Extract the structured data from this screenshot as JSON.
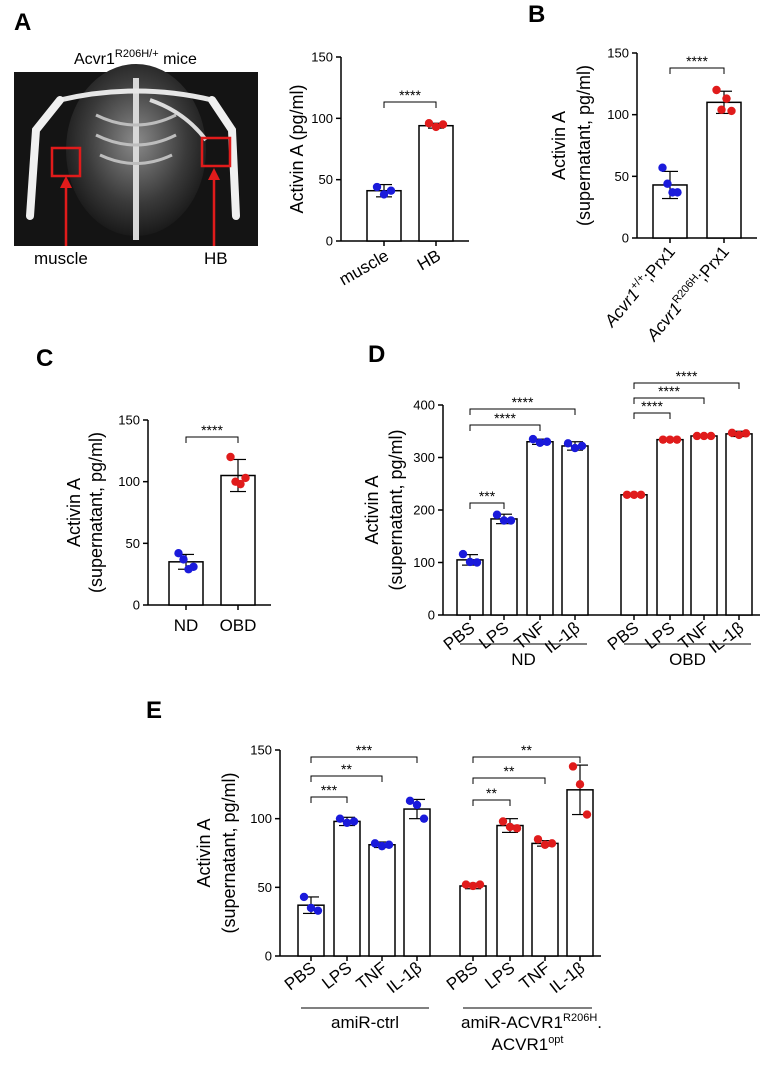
{
  "panels": {
    "A": {
      "label": "A",
      "image": {
        "title": "Acvr1",
        "title_sup": "R206H/+",
        "title_suffix": " mice",
        "muscle_label": "muscle",
        "hb_label": "HB"
      },
      "chart": {
        "type": "bar",
        "ylabel": "Activin A (pg/ml)",
        "ylim": [
          0,
          150
        ],
        "yticks": [
          0,
          50,
          100,
          150
        ],
        "categories": [
          "muscle",
          "HB"
        ],
        "values": [
          41,
          94
        ],
        "errors": [
          5,
          2
        ],
        "points": [
          [
            44,
            38,
            41
          ],
          [
            96,
            93,
            95
          ]
        ],
        "point_colors": [
          "#1a1adb",
          "#e01b1b"
        ],
        "significance": [
          {
            "from": 0,
            "to": 1,
            "label": "****"
          }
        ]
      }
    },
    "B": {
      "label": "B",
      "chart": {
        "type": "bar",
        "ylabel_line1": "Activin A",
        "ylabel_line2": "(supernatant, pg/ml)",
        "ylim": [
          0,
          150
        ],
        "yticks": [
          0,
          50,
          100,
          150
        ],
        "categories": [
          {
            "main": "Acvr1",
            "sup": "+/+",
            "suffix": ";Prx1"
          },
          {
            "main": "Acvr1",
            "sup": "R206H",
            "suffix": ";Prx1"
          }
        ],
        "values": [
          43,
          110
        ],
        "errors": [
          11,
          9
        ],
        "points": [
          [
            57,
            44,
            37,
            37
          ],
          [
            120,
            104,
            113,
            103
          ]
        ],
        "point_colors": [
          "#1a1adb",
          "#e01b1b"
        ],
        "significance": [
          {
            "from": 0,
            "to": 1,
            "label": "****"
          }
        ]
      }
    },
    "C": {
      "label": "C",
      "chart": {
        "type": "bar",
        "ylabel_line1": "Activin A",
        "ylabel_line2": "(supernatant, pg/ml)",
        "ylim": [
          0,
          150
        ],
        "yticks": [
          0,
          50,
          100,
          150
        ],
        "categories": [
          "ND",
          "OBD"
        ],
        "values": [
          35,
          105
        ],
        "errors": [
          6,
          13
        ],
        "points": [
          [
            42,
            37,
            29,
            31
          ],
          [
            120,
            100,
            98,
            103
          ]
        ],
        "point_colors": [
          "#1a1adb",
          "#e01b1b"
        ],
        "significance": [
          {
            "from": 0,
            "to": 1,
            "label": "****"
          }
        ]
      }
    },
    "D": {
      "label": "D",
      "chart": {
        "type": "bar",
        "ylabel_line1": "Activin A",
        "ylabel_line2": "(supernatant, pg/ml)",
        "ylim": [
          0,
          400
        ],
        "yticks": [
          0,
          100,
          200,
          300,
          400
        ],
        "groups": [
          {
            "name": "ND",
            "color": "#2a2ae0",
            "categories": [
              "PBS",
              "LPS",
              "TNF",
              "IL-1β"
            ],
            "values": [
              105,
              183,
              330,
              322
            ],
            "errors": [
              10,
              9,
              5,
              8
            ],
            "points": [
              [
                116,
                101,
                100
              ],
              [
                191,
                180,
                180
              ],
              [
                335,
                328,
                330
              ],
              [
                327,
                318,
                322
              ]
            ],
            "point_color": "#1a1adb",
            "significance": [
              {
                "from": 0,
                "to": 1,
                "label": "***"
              },
              {
                "from": 0,
                "to": 2,
                "label": "****"
              },
              {
                "from": 0,
                "to": 3,
                "label": "****"
              }
            ]
          },
          {
            "name": "OBD",
            "color": "#e01b1b",
            "categories": [
              "PBS",
              "LPS",
              "TNF",
              "IL-1β"
            ],
            "values": [
              229,
              334,
              341,
              345
            ],
            "errors": [
              1,
              2,
              2,
              5
            ],
            "points": [
              [
                229,
                229,
                229
              ],
              [
                334,
                334,
                334
              ],
              [
                341,
                341,
                341
              ],
              [
                347,
                343,
                346
              ]
            ],
            "point_color": "#e01b1b",
            "significance": [
              {
                "from": 0,
                "to": 1,
                "label": "****"
              },
              {
                "from": 0,
                "to": 2,
                "label": "****"
              },
              {
                "from": 0,
                "to": 3,
                "label": "****"
              }
            ]
          }
        ]
      }
    },
    "E": {
      "label": "E",
      "chart": {
        "type": "bar",
        "ylabel_line1": "Activin A",
        "ylabel_line2": "(supernatant, pg/ml)",
        "ylim": [
          0,
          150
        ],
        "yticks": [
          0,
          50,
          100,
          150
        ],
        "groups": [
          {
            "name": "amiR-ctrl",
            "color": "#2a2ae0",
            "categories": [
              "PBS",
              "LPS",
              "TNF",
              "IL-1β"
            ],
            "values": [
              37,
              98,
              81,
              107
            ],
            "errors": [
              6,
              3,
              2,
              7
            ],
            "points": [
              [
                43,
                35,
                33
              ],
              [
                100,
                97,
                98
              ],
              [
                82,
                80,
                81
              ],
              [
                113,
                110,
                100
              ]
            ],
            "point_color": "#1a1adb",
            "significance": [
              {
                "from": 0,
                "to": 1,
                "label": "***"
              },
              {
                "from": 0,
                "to": 2,
                "label": "**"
              },
              {
                "from": 0,
                "to": 3,
                "label": "***"
              }
            ]
          },
          {
            "name_line1": "amiR-ACVR1",
            "name_sup1": "R206H",
            "name_suffix1": ".",
            "name_line2": "ACVR1",
            "name_sup2": "opt",
            "color": "#e01b1b",
            "categories": [
              "PBS",
              "LPS",
              "TNF",
              "IL-1β"
            ],
            "values": [
              51,
              95,
              82,
              121
            ],
            "errors": [
              2,
              5,
              2,
              18
            ],
            "points": [
              [
                52,
                51,
                52
              ],
              [
                98,
                94,
                93
              ],
              [
                85,
                81,
                82
              ],
              [
                138,
                125,
                103
              ]
            ],
            "point_color": "#e01b1b",
            "significance": [
              {
                "from": 0,
                "to": 1,
                "label": "**"
              },
              {
                "from": 0,
                "to": 2,
                "label": "**"
              },
              {
                "from": 0,
                "to": 3,
                "label": "**"
              }
            ]
          }
        ]
      }
    }
  }
}
